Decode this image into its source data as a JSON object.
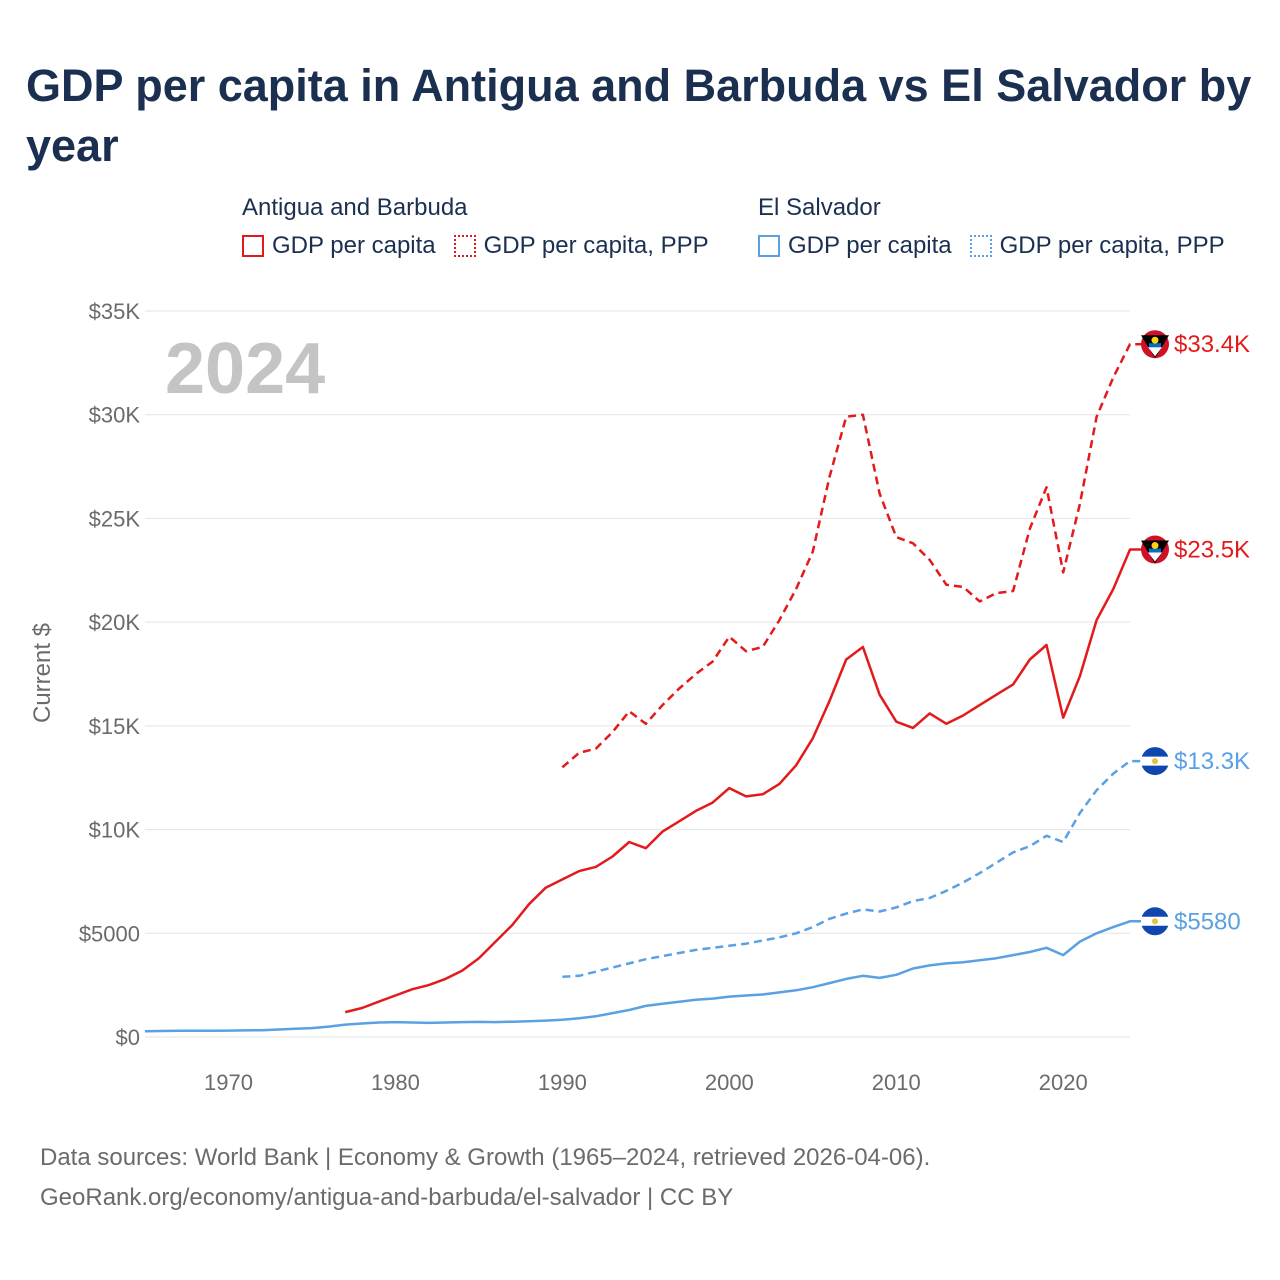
{
  "title": "GDP per capita in Antigua and Barbuda vs El Salvador by year",
  "legend": {
    "groups": [
      {
        "name": "Antigua and Barbuda",
        "color": "#e31a1c",
        "entries": [
          {
            "label": "GDP per capita",
            "style": "solid"
          },
          {
            "label": "GDP per capita, PPP",
            "style": "dotted"
          }
        ]
      },
      {
        "name": "El Salvador",
        "color": "#5aa0e3",
        "entries": [
          {
            "label": "GDP per capita",
            "style": "solid"
          },
          {
            "label": "GDP per capita, PPP",
            "style": "dotted"
          }
        ]
      }
    ]
  },
  "year_label": "2024",
  "footer": {
    "line1": "Data sources: World Bank | Economy & Growth (1965–2024, retrieved 2026-04-06).",
    "line2": "GeoRank.org/economy/antigua-and-barbuda/el-salvador | CC BY"
  },
  "chart_data": {
    "type": "line",
    "title": "GDP per capita in Antigua and Barbuda vs El Salvador by year",
    "xlabel": "",
    "ylabel": "Current $",
    "xlim": [
      1965,
      2024
    ],
    "ylim": [
      0,
      35000
    ],
    "x_ticks": [
      1970,
      1980,
      1990,
      2000,
      2010,
      2020
    ],
    "y_ticks": [
      {
        "value": 0,
        "label": "$0"
      },
      {
        "value": 5000,
        "label": "$5000"
      },
      {
        "value": 10000,
        "label": "$10K"
      },
      {
        "value": 15000,
        "label": "$15K"
      },
      {
        "value": 20000,
        "label": "$20K"
      },
      {
        "value": 25000,
        "label": "$25K"
      },
      {
        "value": 30000,
        "label": "$30K"
      },
      {
        "value": 35000,
        "label": "$35K"
      }
    ],
    "grid": true,
    "series": [
      {
        "name": "Antigua and Barbuda GDP per capita, PPP",
        "country": "Antigua and Barbuda",
        "color": "#e31a1c",
        "dash": true,
        "end_label": "$33.4K",
        "x": [
          1990,
          1991,
          1992,
          1993,
          1994,
          1995,
          1996,
          1997,
          1998,
          1999,
          2000,
          2001,
          2002,
          2003,
          2004,
          2005,
          2006,
          2007,
          2008,
          2009,
          2010,
          2011,
          2012,
          2013,
          2014,
          2015,
          2016,
          2017,
          2018,
          2019,
          2020,
          2021,
          2022,
          2023,
          2024
        ],
        "y": [
          13000,
          13700,
          13900,
          14700,
          15700,
          15100,
          16000,
          16800,
          17500,
          18100,
          19300,
          18600,
          18800,
          20100,
          21600,
          23400,
          27000,
          29900,
          30000,
          26200,
          24100,
          23800,
          23000,
          21800,
          21700,
          21000,
          21400,
          21500,
          24500,
          26500,
          22400,
          25700,
          29900,
          31800,
          33400
        ]
      },
      {
        "name": "Antigua and Barbuda GDP per capita",
        "country": "Antigua and Barbuda",
        "color": "#e31a1c",
        "dash": false,
        "end_label": "$23.5K",
        "x": [
          1977,
          1978,
          1979,
          1980,
          1981,
          1982,
          1983,
          1984,
          1985,
          1986,
          1987,
          1988,
          1989,
          1990,
          1991,
          1992,
          1993,
          1994,
          1995,
          1996,
          1997,
          1998,
          1999,
          2000,
          2001,
          2002,
          2003,
          2004,
          2005,
          2006,
          2007,
          2008,
          2009,
          2010,
          2011,
          2012,
          2013,
          2014,
          2015,
          2016,
          2017,
          2018,
          2019,
          2020,
          2021,
          2022,
          2023,
          2024
        ],
        "y": [
          1200,
          1400,
          1700,
          2000,
          2300,
          2500,
          2800,
          3200,
          3800,
          4600,
          5400,
          6400,
          7200,
          7600,
          8000,
          8200,
          8700,
          9400,
          9100,
          9900,
          10400,
          10900,
          11300,
          12000,
          11600,
          11700,
          12200,
          13100,
          14400,
          16200,
          18200,
          18800,
          16500,
          15200,
          14900,
          15600,
          15100,
          15500,
          16000,
          16500,
          17000,
          18200,
          18900,
          15400,
          17400,
          20100,
          21600,
          23500
        ]
      },
      {
        "name": "El Salvador GDP per capita, PPP",
        "country": "El Salvador",
        "color": "#5aa0e3",
        "dash": true,
        "end_label": "$13.3K",
        "x": [
          1990,
          1991,
          1992,
          1993,
          1994,
          1995,
          1996,
          1997,
          1998,
          1999,
          2000,
          2001,
          2002,
          2003,
          2004,
          2005,
          2006,
          2007,
          2008,
          2009,
          2010,
          2011,
          2012,
          2013,
          2014,
          2015,
          2016,
          2017,
          2018,
          2019,
          2020,
          2021,
          2022,
          2023,
          2024
        ],
        "y": [
          2900,
          2950,
          3150,
          3350,
          3550,
          3750,
          3900,
          4050,
          4200,
          4300,
          4400,
          4500,
          4650,
          4800,
          5000,
          5300,
          5700,
          5950,
          6150,
          6050,
          6250,
          6550,
          6700,
          7050,
          7450,
          7900,
          8400,
          8900,
          9200,
          9700,
          9400,
          10800,
          11900,
          12700,
          13300
        ]
      },
      {
        "name": "El Salvador GDP per capita",
        "country": "El Salvador",
        "color": "#5aa0e3",
        "dash": false,
        "end_label": "$5580",
        "x": [
          1965,
          1966,
          1967,
          1968,
          1969,
          1970,
          1971,
          1972,
          1973,
          1974,
          1975,
          1976,
          1977,
          1978,
          1979,
          1980,
          1981,
          1982,
          1983,
          1984,
          1985,
          1986,
          1987,
          1988,
          1989,
          1990,
          1991,
          1992,
          1993,
          1994,
          1995,
          1996,
          1997,
          1998,
          1999,
          2000,
          2001,
          2002,
          2003,
          2004,
          2005,
          2006,
          2007,
          2008,
          2009,
          2010,
          2011,
          2012,
          2013,
          2014,
          2015,
          2016,
          2017,
          2018,
          2019,
          2020,
          2021,
          2022,
          2023,
          2024
        ],
        "y": [
          280,
          290,
          300,
          300,
          300,
          310,
          320,
          330,
          360,
          400,
          430,
          500,
          600,
          650,
          700,
          720,
          700,
          680,
          700,
          720,
          730,
          720,
          740,
          760,
          790,
          830,
          900,
          1000,
          1150,
          1300,
          1500,
          1600,
          1700,
          1800,
          1850,
          1950,
          2000,
          2050,
          2150,
          2250,
          2400,
          2600,
          2800,
          2950,
          2850,
          3000,
          3300,
          3450,
          3550,
          3600,
          3700,
          3800,
          3950,
          4100,
          4300,
          3950,
          4600,
          5000,
          5300,
          5580
        ]
      }
    ]
  }
}
